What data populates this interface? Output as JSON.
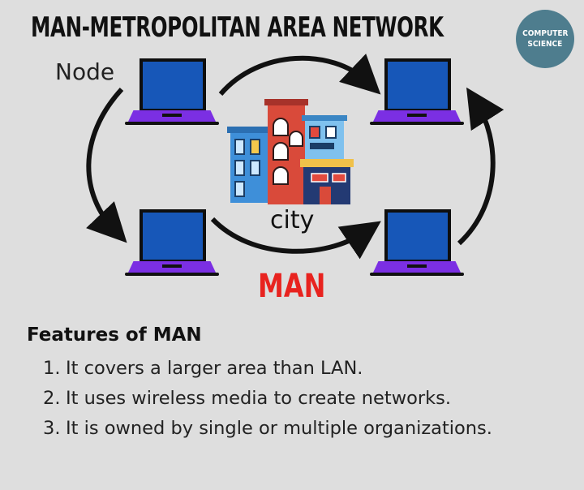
{
  "title": "MAN-METROPOLITAN AREA NETWORK",
  "badge": {
    "line1": "COMPUTER",
    "line2": "SCIENCE"
  },
  "node_label": "Node",
  "city_label": "city",
  "network_label": "MAN",
  "colors": {
    "screen": "#1757b8",
    "keyboard": "#7b2fe3",
    "badge": "#4e7d8e",
    "man_text": "#e8231f",
    "background": "#dedede"
  },
  "features": {
    "heading": "Features of MAN",
    "items": [
      {
        "num": "1.",
        "text": "It covers a larger area than LAN."
      },
      {
        "num": "2.",
        "text": "It uses wireless media to create networks."
      },
      {
        "num": "3.",
        "text": "It is owned by single or multiple organizations."
      }
    ]
  }
}
